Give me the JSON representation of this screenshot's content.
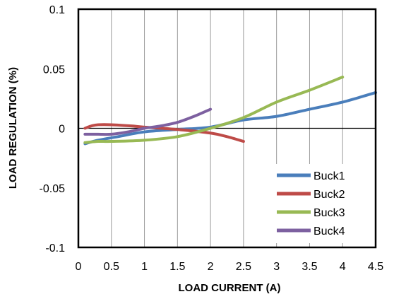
{
  "chart_data": {
    "type": "line",
    "title": "",
    "xlabel": "LOAD CURRENT  (A)",
    "ylabel": "LOAD REGULATION  (%)",
    "xlim": [
      0,
      4.5
    ],
    "ylim": [
      -0.1,
      0.1
    ],
    "x_ticks": [
      0,
      0.5,
      1,
      1.5,
      2,
      2.5,
      3,
      3.5,
      4,
      4.5
    ],
    "x_tick_labels": [
      "0",
      "0.5",
      "1",
      "1.5",
      "2",
      "2.5",
      "3",
      "3.5",
      "4",
      "4.5"
    ],
    "y_ticks": [
      -0.1,
      -0.05,
      0,
      0.05,
      0.1
    ],
    "y_tick_labels": [
      "-0.1",
      "-0.05",
      "0",
      "0.05",
      "0.1"
    ],
    "grid": "vertical",
    "legend_position": "bottom-right",
    "series": [
      {
        "name": "Buck1",
        "color": "#4a7ebb",
        "x": [
          0.1,
          0.3,
          0.6,
          1.0,
          1.5,
          2.0,
          2.5,
          3.0,
          3.5,
          4.0,
          4.5
        ],
        "y": [
          -0.013,
          -0.01,
          -0.007,
          -0.003,
          -0.001,
          0.001,
          0.007,
          0.01,
          0.016,
          0.022,
          0.03
        ]
      },
      {
        "name": "Buck2",
        "color": "#be4b48",
        "x": [
          0.1,
          0.2,
          0.3,
          0.5,
          0.8,
          1.0,
          1.5,
          2.0,
          2.25,
          2.5
        ],
        "y": [
          0.0,
          0.002,
          0.003,
          0.003,
          0.002,
          0.001,
          -0.001,
          -0.004,
          -0.007,
          -0.011
        ]
      },
      {
        "name": "Buck3",
        "color": "#98b954",
        "x": [
          0.1,
          0.3,
          0.5,
          1.0,
          1.5,
          2.0,
          2.5,
          3.0,
          3.5,
          4.0
        ],
        "y": [
          -0.012,
          -0.011,
          -0.011,
          -0.01,
          -0.007,
          0.0,
          0.009,
          0.022,
          0.032,
          0.043
        ]
      },
      {
        "name": "Buck4",
        "color": "#7d60a0",
        "x": [
          0.1,
          0.3,
          0.5,
          0.75,
          1.0,
          1.25,
          1.5,
          1.75,
          2.0
        ],
        "y": [
          -0.005,
          -0.005,
          -0.005,
          -0.003,
          0.0,
          0.002,
          0.005,
          0.01,
          0.016
        ]
      }
    ]
  }
}
